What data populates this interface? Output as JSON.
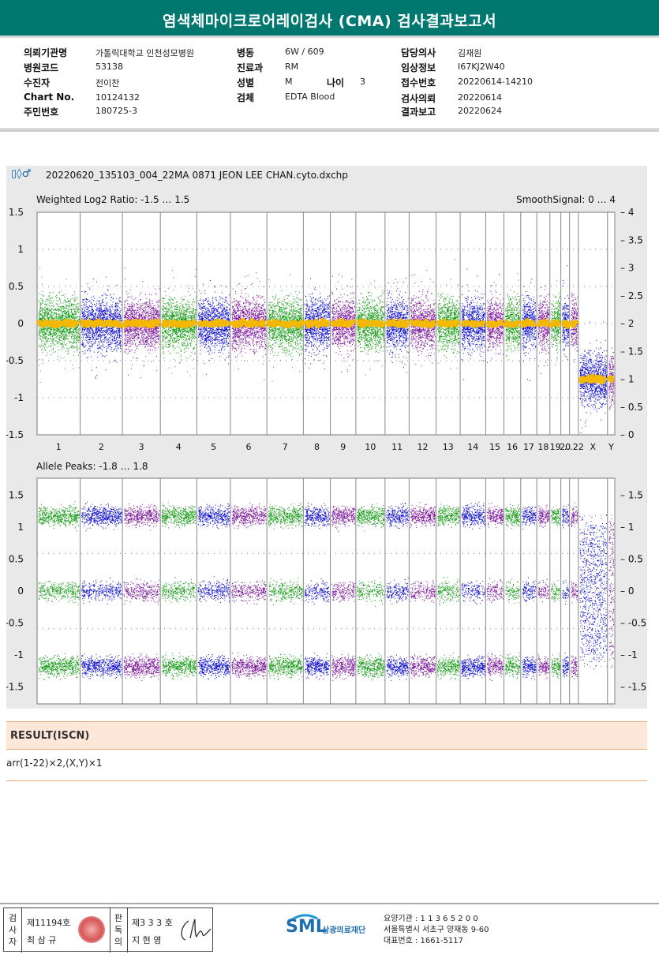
{
  "report": {
    "title": "염색체마이크로어레이검사 (CMA) 검사결과보고서"
  },
  "patient_info": {
    "col1": [
      {
        "label": "의뢰기관명",
        "value": "가톨릭대학교 인천성모병원"
      },
      {
        "label": "병원코드",
        "value": "53138"
      },
      {
        "label": "수진자",
        "value": "전이찬"
      },
      {
        "label": "Chart No.",
        "value": "10124132"
      },
      {
        "label": "주민번호",
        "value": "180725-3"
      }
    ],
    "col2": [
      {
        "label": "병동",
        "value": "6W / 609"
      },
      {
        "label": "진료과",
        "value": "RM"
      },
      {
        "label": "성별",
        "value": "M"
      },
      {
        "label": "검체",
        "value": "EDTA Blood"
      }
    ],
    "age": {
      "label": "나이",
      "value": "3"
    },
    "col3": [
      {
        "label": "담당의사",
        "value": "김재원"
      },
      {
        "label": "임상정보",
        "value": "I67KJ2W40"
      },
      {
        "label": "접수번호",
        "value": "20220614-14210"
      },
      {
        "label": "검사의뢰",
        "value": "20220614"
      },
      {
        "label": "결과보고",
        "value": "20220624"
      }
    ]
  },
  "cma_panel": {
    "file_name": "20220620_135103_004_22MA 0871 JEON LEE CHAN.cyto.dxchp",
    "top_plot": {
      "left_label": "Weighted Log2 Ratio: -1.5 … 1.5",
      "right_label": "SmoothSignal: 0 … 4",
      "left_ticks": [
        "1.5",
        "1",
        "0.5",
        "0",
        "-0.5",
        "-1",
        "-1.5"
      ],
      "right_ticks": [
        "4",
        "3.5",
        "3",
        "2.5",
        "2",
        "1.5",
        "1",
        "0.5",
        "0"
      ]
    },
    "bottom_plot": {
      "left_label": "Allele Peaks: -1.8 … 1.8",
      "left_ticks": [
        "1.5",
        "1",
        "0.5",
        "0",
        "-0.5",
        "-1",
        "-1.5"
      ],
      "right_ticks": [
        "1.5",
        "1",
        "0.5",
        "0",
        "-0.5",
        "-1",
        "-1.5"
      ]
    },
    "chromosome_labels": [
      "1",
      "2",
      "3",
      "4",
      "5",
      "6",
      "7",
      "8",
      "9",
      "10",
      "11",
      "12",
      "13",
      "14",
      "15",
      "16",
      "17",
      "18",
      "19",
      "20",
      "…22",
      "X",
      "Y"
    ],
    "colors": {
      "green": "#119a11",
      "blue": "#0a0ad0",
      "purple": "#7a119a",
      "orange": "#f5b800"
    }
  },
  "result": {
    "header": "RESULT(ISCN)",
    "text": "arr(1-22)×2,(X,Y)×1"
  },
  "footer": {
    "sign1_role": "검사자",
    "sign1_no": "제11194호",
    "sign1_name": "최 삼 규",
    "sign2_role": "판독의",
    "sign2_no": "제3 3 3 호",
    "sign2_name": "지 현 영",
    "logo": "SML",
    "logo_sub": "삼광의료재단",
    "org_line1": "요양기관 : 1 1 3 6 5 2 0 0",
    "org_line2": "서울특별시 서초구 양재동 9-60",
    "org_line3": "대표번호 : 1661-5117"
  }
}
